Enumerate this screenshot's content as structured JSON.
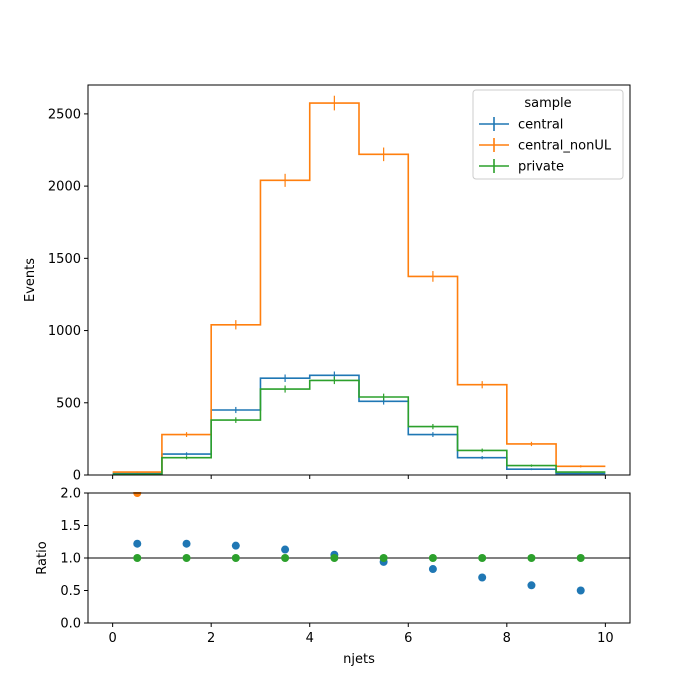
{
  "chart_data": [
    {
      "type": "line",
      "subtype": "step-histogram",
      "title": "",
      "xlabel": "",
      "ylabel": "Events",
      "xlim": [
        -0.5,
        10.5
      ],
      "ylim": [
        0,
        2700
      ],
      "yticks": [
        0,
        500,
        1000,
        1500,
        2000,
        2500
      ],
      "bin_edges": [
        0,
        1,
        2,
        3,
        4,
        5,
        6,
        7,
        8,
        9,
        10
      ],
      "legend": {
        "title": "sample",
        "placement": "top-right"
      },
      "series": [
        {
          "name": "central",
          "color": "#1f77b4",
          "values": [
            10,
            145,
            450,
            670,
            690,
            510,
            280,
            120,
            40,
            10
          ]
        },
        {
          "name": "central_nonUL",
          "color": "#ff7f0e",
          "values": [
            20,
            280,
            1040,
            2040,
            2575,
            2220,
            1375,
            625,
            215,
            60
          ]
        },
        {
          "name": "private",
          "color": "#2ca02c",
          "values": [
            5,
            120,
            380,
            595,
            655,
            540,
            335,
            170,
            65,
            20
          ]
        }
      ],
      "grid": false
    },
    {
      "type": "scatter",
      "title": "",
      "xlabel": "njets",
      "ylabel": "Ratio",
      "xlim": [
        -0.5,
        10.5
      ],
      "ylim": [
        0,
        2.0
      ],
      "xticks": [
        0,
        2,
        4,
        6,
        8,
        10
      ],
      "yticks": [
        0.0,
        0.5,
        1.0,
        1.5,
        2.0
      ],
      "reference_line": 1.0,
      "x": [
        0.5,
        1.5,
        2.5,
        3.5,
        4.5,
        5.5,
        6.5,
        7.5,
        8.5,
        9.5
      ],
      "series": [
        {
          "name": "central_nonUL",
          "color": "#ff7f0e",
          "points": [
            [
              0.5,
              2.0
            ]
          ]
        },
        {
          "name": "central",
          "color": "#1f77b4",
          "values": [
            1.22,
            1.22,
            1.19,
            1.13,
            1.05,
            0.94,
            0.83,
            0.7,
            0.58,
            0.5
          ]
        },
        {
          "name": "private",
          "color": "#2ca02c",
          "values": [
            1.0,
            1.0,
            1.0,
            1.0,
            1.0,
            1.0,
            1.0,
            1.0,
            1.0,
            1.0
          ]
        }
      ],
      "grid": false
    }
  ]
}
